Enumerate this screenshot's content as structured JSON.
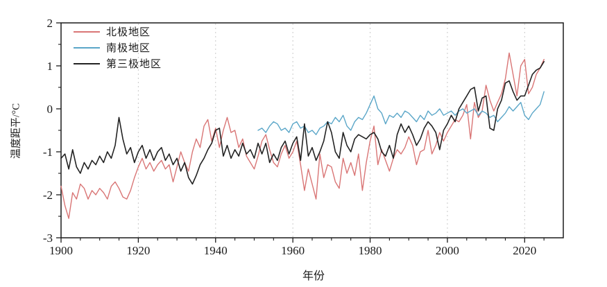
{
  "figure": {
    "background_color": "#ffffff",
    "axis_color": "#1a1a1a",
    "gridline_color": "#c9c9c9"
  },
  "chart_data": {
    "type": "line",
    "title": "",
    "xlabel": "年份",
    "ylabel": "温度距平/°C",
    "xlim": [
      1900,
      2030
    ],
    "ylim": [
      -3,
      2
    ],
    "x_major_ticks": [
      1900,
      1920,
      1940,
      1960,
      1980,
      2000,
      2020
    ],
    "x_tick_labels": [
      "1900",
      "1920",
      "1940",
      "1960",
      "1980",
      "2000",
      "2020"
    ],
    "x_minor_step": 5,
    "y_major_ticks": [
      -3,
      -2,
      -1,
      0,
      1,
      2
    ],
    "y_tick_labels": [
      "-3",
      "-2",
      "-1",
      "0",
      "1",
      "2"
    ],
    "y_minor_step": 0.5,
    "grid": "vertical dashed lines at 20-year major ticks",
    "legend_position": "inside top-left",
    "series": [
      {
        "name": "北极地区",
        "color": "#d97575",
        "start_year": 1900,
        "values": [
          -1.8,
          -2.25,
          -2.55,
          -1.95,
          -2.1,
          -1.75,
          -1.85,
          -2.1,
          -1.9,
          -2.0,
          -1.85,
          -1.95,
          -2.1,
          -1.8,
          -1.7,
          -1.85,
          -2.05,
          -2.1,
          -1.9,
          -1.6,
          -1.35,
          -1.15,
          -1.4,
          -1.25,
          -1.45,
          -1.3,
          -1.2,
          -1.4,
          -1.3,
          -1.7,
          -1.35,
          -1.0,
          -1.25,
          -1.45,
          -1.0,
          -0.7,
          -0.9,
          -0.4,
          -0.25,
          -0.75,
          -0.45,
          -0.9,
          -0.5,
          -0.2,
          -0.55,
          -0.5,
          -0.9,
          -0.7,
          -1.1,
          -1.25,
          -1.4,
          -1.1,
          -0.75,
          -0.6,
          -0.95,
          -1.25,
          -1.35,
          -1.05,
          -0.85,
          -1.15,
          -1.0,
          -0.75,
          -1.3,
          -1.9,
          -1.4,
          -1.75,
          -2.1,
          -1.05,
          -1.6,
          -1.3,
          -1.35,
          -1.7,
          -1.85,
          -1.15,
          -1.5,
          -1.25,
          -1.55,
          -1.05,
          -1.9,
          -1.25,
          -0.75,
          -0.4,
          -1.3,
          -0.95,
          -1.2,
          -1.45,
          -1.15,
          -0.95,
          -1.05,
          -0.9,
          -0.65,
          -0.85,
          -1.3,
          -1.0,
          -0.95,
          -0.5,
          -1.05,
          -0.85,
          -0.55,
          -0.75,
          -0.55,
          -0.4,
          -0.25,
          -0.3,
          -0.15,
          0.1,
          -0.7,
          0.15,
          -0.2,
          -0.05,
          0.55,
          0.2,
          -0.05,
          0.15,
          0.35,
          0.7,
          1.3,
          0.8,
          0.3,
          1.0,
          1.15,
          0.35,
          0.5,
          0.8,
          0.95,
          1.15
        ]
      },
      {
        "name": "南极地区",
        "color": "#5aa6c8",
        "start_year": 1951,
        "values": [
          -0.5,
          -0.45,
          -0.55,
          -0.4,
          -0.3,
          -0.35,
          -0.5,
          -0.45,
          -0.55,
          -0.35,
          -0.3,
          -0.45,
          -0.4,
          -0.55,
          -0.5,
          -0.6,
          -0.45,
          -0.4,
          -0.3,
          -0.35,
          -0.2,
          -0.3,
          -0.15,
          -0.4,
          -0.5,
          -0.3,
          -0.2,
          -0.25,
          -0.1,
          0.1,
          0.3,
          0.0,
          -0.1,
          -0.35,
          -0.15,
          -0.2,
          -0.1,
          -0.2,
          -0.05,
          -0.1,
          -0.2,
          -0.3,
          -0.15,
          -0.25,
          -0.05,
          -0.15,
          -0.1,
          0.0,
          -0.15,
          -0.1,
          -0.05,
          -0.15,
          -0.05,
          0.0,
          -0.1,
          -0.05,
          0.0,
          -0.15,
          -0.05,
          -0.1,
          -0.2,
          -0.15,
          -0.3,
          -0.2,
          -0.1,
          0.05,
          -0.05,
          0.05,
          0.15,
          -0.15,
          -0.25,
          -0.1,
          0.0,
          0.1,
          0.4
        ]
      },
      {
        "name": "第三极地区",
        "color": "#222222",
        "start_year": 1900,
        "values": [
          -1.15,
          -1.05,
          -1.4,
          -0.95,
          -1.35,
          -1.5,
          -1.25,
          -1.4,
          -1.2,
          -1.3,
          -1.1,
          -1.25,
          -1.0,
          -1.15,
          -0.85,
          -0.2,
          -0.7,
          -1.05,
          -0.9,
          -1.25,
          -1.0,
          -0.85,
          -1.15,
          -0.95,
          -1.2,
          -1.0,
          -0.9,
          -1.2,
          -1.05,
          -1.3,
          -1.15,
          -1.45,
          -1.25,
          -1.6,
          -1.75,
          -1.55,
          -1.3,
          -1.15,
          -0.95,
          -0.8,
          -0.5,
          -0.45,
          -1.1,
          -0.85,
          -1.15,
          -0.95,
          -1.1,
          -0.8,
          -1.05,
          -0.95,
          -1.15,
          -0.8,
          -1.05,
          -0.8,
          -1.25,
          -1.05,
          -1.2,
          -0.9,
          -0.75,
          -1.05,
          -0.8,
          -0.65,
          -1.2,
          -0.35,
          -1.1,
          -0.9,
          -1.2,
          -1.0,
          -0.75,
          -0.3,
          -0.55,
          -1.0,
          -1.15,
          -0.55,
          -0.85,
          -1.0,
          -0.7,
          -0.6,
          -0.65,
          -0.7,
          -0.6,
          -0.55,
          -0.7,
          -1.0,
          -1.1,
          -0.85,
          -1.15,
          -0.6,
          -0.35,
          -0.55,
          -0.4,
          -0.6,
          -0.85,
          -0.7,
          -0.45,
          -0.3,
          -0.4,
          -0.55,
          -0.95,
          -0.5,
          -0.35,
          -0.15,
          -0.3,
          0.0,
          0.15,
          0.3,
          0.45,
          0.5,
          -0.05,
          0.25,
          0.3,
          -0.45,
          -0.5,
          0.0,
          0.2,
          0.6,
          0.65,
          0.4,
          0.2,
          0.3,
          0.3,
          0.55,
          0.8,
          0.9,
          0.95,
          1.1
        ]
      }
    ]
  }
}
